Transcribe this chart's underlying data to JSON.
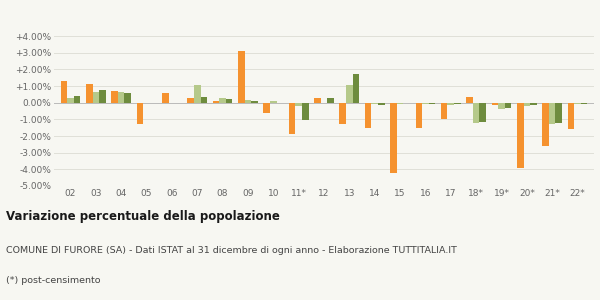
{
  "categories": [
    "02",
    "03",
    "04",
    "05",
    "06",
    "07",
    "08",
    "09",
    "10",
    "11*",
    "12",
    "13",
    "14",
    "15",
    "16",
    "17",
    "18*",
    "19*",
    "20*",
    "21*",
    "22*"
  ],
  "furore": [
    1.3,
    1.1,
    0.7,
    -1.3,
    0.6,
    0.3,
    0.1,
    3.1,
    -0.6,
    -1.9,
    0.3,
    -1.3,
    -1.5,
    -4.2,
    -1.5,
    -1.0,
    0.35,
    -0.15,
    -3.9,
    -2.6,
    -1.6
  ],
  "provincia": [
    0.25,
    0.65,
    0.65,
    -0.05,
    0.0,
    1.05,
    0.25,
    0.15,
    0.1,
    -0.2,
    -0.05,
    1.05,
    -0.1,
    -0.1,
    -0.1,
    -0.15,
    -1.2,
    -0.4,
    -0.2,
    -1.3,
    -0.1
  ],
  "campania": [
    0.4,
    0.75,
    0.6,
    0.0,
    0.0,
    0.35,
    0.2,
    0.1,
    -0.05,
    -1.05,
    0.3,
    1.7,
    -0.15,
    -0.05,
    -0.1,
    -0.1,
    -1.15,
    -0.3,
    -0.15,
    -1.2,
    -0.1
  ],
  "furore_color": "#f5922f",
  "provincia_color": "#b5c98a",
  "campania_color": "#6e8c3e",
  "bg_color": "#f7f7f2",
  "grid_color": "#e0e0d8",
  "title": "Variazione percentuale della popolazione",
  "subtitle": "COMUNE DI FURORE (SA) - Dati ISTAT al 31 dicembre di ogni anno - Elaborazione TUTTITALIA.IT",
  "footnote": "(*) post-censimento",
  "ylim": [
    -5.0,
    4.0
  ],
  "yticks": [
    -5.0,
    -4.0,
    -3.0,
    -2.0,
    -1.0,
    0.0,
    1.0,
    2.0,
    3.0,
    4.0
  ],
  "ytick_labels": [
    "-5.00%",
    "-4.00%",
    "-3.00%",
    "-2.00%",
    "-1.00%",
    "0.00%",
    "+1.00%",
    "+2.00%",
    "+3.00%",
    "+4.00%"
  ],
  "bar_width": 0.26
}
